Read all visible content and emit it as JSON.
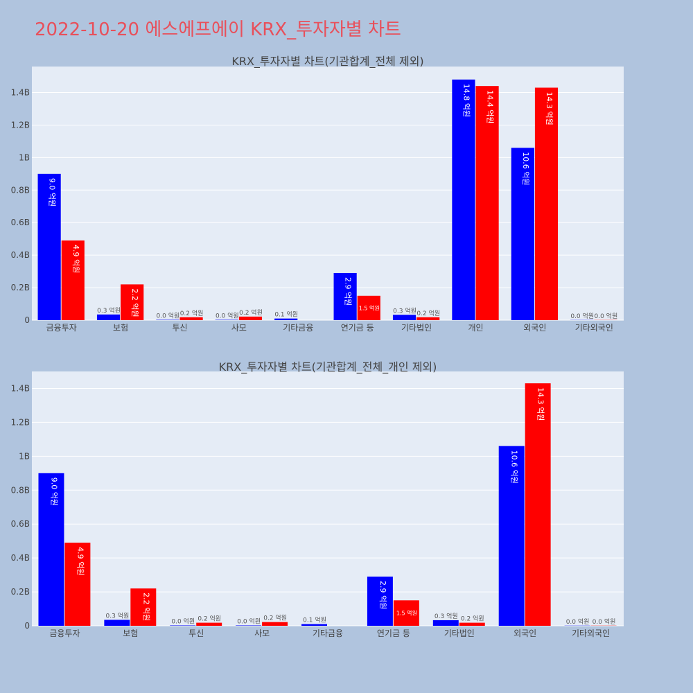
{
  "page": {
    "title": "2022-10-20 에스에프에이 KRX_투자자별 차트"
  },
  "colors": {
    "buy": "#0000ff",
    "sell": "#ff0000",
    "plot_bg": "#e5ecf6",
    "page_bg": "#b0c4de",
    "title": "#e8505b"
  },
  "chart_data": [
    {
      "type": "bar",
      "title": "KRX_투자자별 차트(기관합계_전체 제외)",
      "xlabel": "",
      "ylabel": "",
      "ylim": [
        0,
        1.56
      ],
      "yticks": [
        0,
        0.2,
        0.4,
        0.6,
        0.8,
        1,
        1.2,
        1.4
      ],
      "ytick_labels": [
        "0",
        "0.2B",
        "0.4B",
        "0.6B",
        "0.8B",
        "1B",
        "1.2B",
        "1.4B"
      ],
      "categories": [
        "금융투자",
        "보험",
        "투신",
        "사모",
        "기타금융",
        "연기금 등",
        "기타법인",
        "개인",
        "외국인",
        "기타외국인"
      ],
      "series": [
        {
          "values": [
            0.9,
            0.035,
            0.002,
            0.002,
            0.01,
            0.29,
            0.033,
            1.48,
            1.06,
            0.001
          ],
          "labels": [
            "9.0 억원",
            "0.3 억원",
            "0.0 억원",
            "0.0 억원",
            "0.1 억원",
            "2.9 억원",
            "0.3 억원",
            "14.8 억원",
            "10.6 억원",
            "0.0 억원"
          ]
        },
        {
          "values": [
            0.49,
            0.22,
            0.018,
            0.022,
            0.0,
            0.15,
            0.018,
            1.44,
            1.43,
            0.001
          ],
          "labels": [
            "4.9 억원",
            "2.2 억원",
            "0.2 억원",
            "0.2 억원",
            "",
            "1.5 억원",
            "0.2 억원",
            "14.4 억원",
            "14.3 억원",
            "0.0 억원"
          ]
        }
      ],
      "legend": "none",
      "grid": true
    },
    {
      "type": "bar",
      "title": "KRX_투자자별 차트(기관합계_전체_개인 제외)",
      "xlabel": "",
      "ylabel": "",
      "ylim": [
        0,
        1.5
      ],
      "yticks": [
        0,
        0.2,
        0.4,
        0.6,
        0.8,
        1,
        1.2,
        1.4
      ],
      "ytick_labels": [
        "0",
        "0.2B",
        "0.4B",
        "0.6B",
        "0.8B",
        "1B",
        "1.2B",
        "1.4B"
      ],
      "categories": [
        "금융투자",
        "보험",
        "투신",
        "사모",
        "기타금융",
        "연기금 등",
        "기타법인",
        "외국인",
        "기타외국인"
      ],
      "series": [
        {
          "values": [
            0.9,
            0.035,
            0.002,
            0.002,
            0.01,
            0.29,
            0.033,
            1.06,
            0.001
          ],
          "labels": [
            "9.0 억원",
            "0.3 억원",
            "0.0 억원",
            "0.0 억원",
            "0.1 억원",
            "2.9 억원",
            "0.3 억원",
            "10.6 억원",
            "0.0 억원"
          ]
        },
        {
          "values": [
            0.49,
            0.22,
            0.018,
            0.022,
            0.0,
            0.15,
            0.018,
            1.43,
            0.001
          ],
          "labels": [
            "4.9 억원",
            "2.2 억원",
            "0.2 억원",
            "0.2 억원",
            "",
            "1.5 억원",
            "0.2 억원",
            "14.3 억원",
            "0.0 억원"
          ]
        }
      ],
      "legend": "none",
      "grid": true
    }
  ]
}
